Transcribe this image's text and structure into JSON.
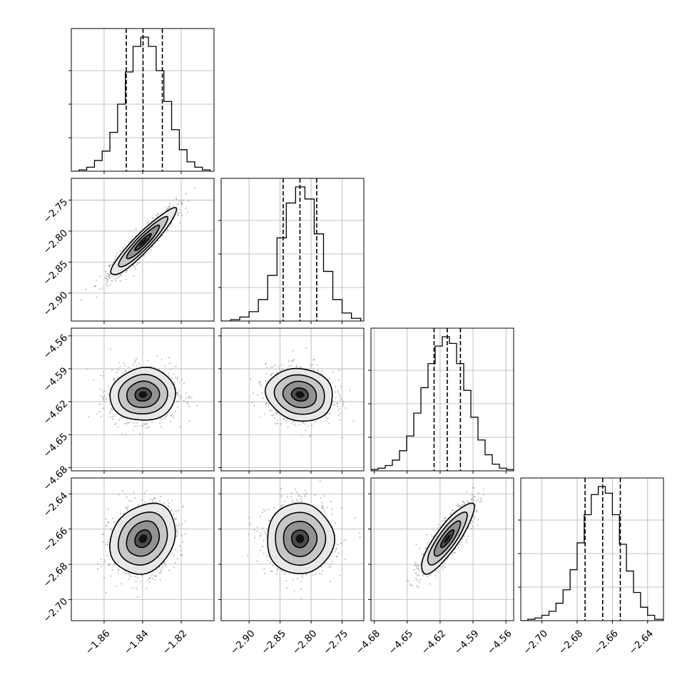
{
  "chart_data": {
    "type": "corner",
    "parameters": 4,
    "grid": true,
    "quantile_lines": "dashed",
    "colors": {
      "line": "#000000",
      "grid": "#b0b0b0",
      "scatter": "#8a8a8a",
      "background": "#ffffff"
    },
    "axes": [
      {
        "index": 0,
        "range": [
          -1.877,
          -1.803
        ],
        "ticks": [
          -1.86,
          -1.84,
          -1.82
        ],
        "tick_labels": [
          "−1.86",
          "−1.84",
          "−1.82"
        ]
      },
      {
        "index": 1,
        "range": [
          -2.945,
          -2.715
        ],
        "ticks": [
          -2.9,
          -2.85,
          -2.8,
          -2.75
        ],
        "tick_labels": [
          "−2.90",
          "−2.85",
          "−2.80",
          "−2.75"
        ]
      },
      {
        "index": 2,
        "range": [
          -4.683,
          -4.553
        ],
        "ticks": [
          -4.68,
          -4.65,
          -4.62,
          -4.59,
          -4.56
        ],
        "tick_labels": [
          "−4.68",
          "−4.65",
          "−4.62",
          "−4.59",
          "−4.56"
        ]
      },
      {
        "index": 3,
        "range": [
          -2.712,
          -2.631
        ],
        "ticks": [
          -2.7,
          -2.68,
          -2.66,
          -2.64
        ],
        "tick_labels": [
          "−2.70",
          "−2.68",
          "−2.66",
          "−2.64"
        ]
      }
    ],
    "marginals": [
      {
        "param": 0,
        "quantiles": [
          -1.8485,
          -1.8398,
          -1.8298
        ],
        "bins": [
          [
            -1.877,
            -1.873,
            0.0
          ],
          [
            -1.873,
            -1.869,
            0.01
          ],
          [
            -1.869,
            -1.865,
            0.03
          ],
          [
            -1.865,
            -1.861,
            0.08
          ],
          [
            -1.861,
            -1.857,
            0.15
          ],
          [
            -1.857,
            -1.853,
            0.29
          ],
          [
            -1.853,
            -1.849,
            0.5
          ],
          [
            -1.849,
            -1.845,
            0.74
          ],
          [
            -1.845,
            -1.841,
            0.93
          ],
          [
            -1.841,
            -1.837,
            1.0
          ],
          [
            -1.837,
            -1.833,
            0.93
          ],
          [
            -1.833,
            -1.829,
            0.75
          ],
          [
            -1.829,
            -1.825,
            0.52
          ],
          [
            -1.825,
            -1.821,
            0.31
          ],
          [
            -1.821,
            -1.817,
            0.16
          ],
          [
            -1.817,
            -1.813,
            0.07
          ],
          [
            -1.813,
            -1.809,
            0.03
          ],
          [
            -1.809,
            -1.805,
            0.01
          ]
        ]
      },
      {
        "param": 1,
        "quantiles": [
          -2.845,
          -2.818,
          -2.791
        ],
        "bins": [
          [
            -2.945,
            -2.93,
            0.0
          ],
          [
            -2.93,
            -2.915,
            0.01
          ],
          [
            -2.915,
            -2.9,
            0.03
          ],
          [
            -2.9,
            -2.885,
            0.07
          ],
          [
            -2.885,
            -2.87,
            0.16
          ],
          [
            -2.87,
            -2.855,
            0.34
          ],
          [
            -2.855,
            -2.84,
            0.62
          ],
          [
            -2.84,
            -2.825,
            0.88
          ],
          [
            -2.825,
            -2.81,
            1.0
          ],
          [
            -2.81,
            -2.795,
            0.91
          ],
          [
            -2.795,
            -2.78,
            0.65
          ],
          [
            -2.78,
            -2.765,
            0.37
          ],
          [
            -2.765,
            -2.75,
            0.16
          ],
          [
            -2.75,
            -2.735,
            0.06
          ],
          [
            -2.735,
            -2.72,
            0.02
          ]
        ]
      },
      {
        "param": 2,
        "quantiles": [
          -4.6255,
          -4.6135,
          -4.6015
        ],
        "bins": [
          [
            -4.683,
            -4.6765,
            0.01
          ],
          [
            -4.6765,
            -4.67,
            0.02
          ],
          [
            -4.67,
            -4.6635,
            0.04
          ],
          [
            -4.6635,
            -4.657,
            0.08
          ],
          [
            -4.657,
            -4.6505,
            0.15
          ],
          [
            -4.6505,
            -4.644,
            0.26
          ],
          [
            -4.644,
            -4.6375,
            0.43
          ],
          [
            -4.6375,
            -4.631,
            0.62
          ],
          [
            -4.631,
            -4.6245,
            0.8
          ],
          [
            -4.6245,
            -4.618,
            0.93
          ],
          [
            -4.618,
            -4.6115,
            1.0
          ],
          [
            -4.6115,
            -4.605,
            0.95
          ],
          [
            -4.605,
            -4.5985,
            0.8
          ],
          [
            -4.5985,
            -4.592,
            0.6
          ],
          [
            -4.592,
            -4.5855,
            0.4
          ],
          [
            -4.5855,
            -4.579,
            0.23
          ],
          [
            -4.579,
            -4.5725,
            0.12
          ],
          [
            -4.5725,
            -4.566,
            0.05
          ],
          [
            -4.566,
            -4.5595,
            0.02
          ],
          [
            -4.5595,
            -4.553,
            0.01
          ]
        ]
      },
      {
        "param": 3,
        "quantiles": [
          -2.6755,
          -2.6655,
          -2.6555
        ],
        "bins": [
          [
            -2.712,
            -2.708,
            0.0
          ],
          [
            -2.708,
            -2.704,
            0.01
          ],
          [
            -2.704,
            -2.7,
            0.02
          ],
          [
            -2.7,
            -2.696,
            0.04
          ],
          [
            -2.696,
            -2.692,
            0.07
          ],
          [
            -2.692,
            -2.688,
            0.13
          ],
          [
            -2.688,
            -2.684,
            0.23
          ],
          [
            -2.684,
            -2.68,
            0.38
          ],
          [
            -2.68,
            -2.676,
            0.58
          ],
          [
            -2.676,
            -2.672,
            0.79
          ],
          [
            -2.672,
            -2.668,
            0.94
          ],
          [
            -2.668,
            -2.664,
            1.0
          ],
          [
            -2.664,
            -2.66,
            0.95
          ],
          [
            -2.66,
            -2.656,
            0.79
          ],
          [
            -2.656,
            -2.652,
            0.57
          ],
          [
            -2.652,
            -2.648,
            0.37
          ],
          [
            -2.648,
            -2.644,
            0.21
          ],
          [
            -2.644,
            -2.64,
            0.1
          ],
          [
            -2.64,
            -2.636,
            0.04
          ],
          [
            -2.636,
            -2.631,
            0.01
          ]
        ]
      }
    ],
    "joints": [
      {
        "x": 0,
        "y": 1,
        "mean": [
          -1.8398,
          -2.818
        ],
        "sd": [
          0.0085,
          0.027
        ],
        "rho": 0.93
      },
      {
        "x": 0,
        "y": 2,
        "mean": [
          -1.8398,
          -4.6135
        ],
        "sd": [
          0.0085,
          0.012
        ],
        "rho": 0.05
      },
      {
        "x": 1,
        "y": 2,
        "mean": [
          -2.818,
          -4.6135
        ],
        "sd": [
          0.027,
          0.012
        ],
        "rho": -0.1
      },
      {
        "x": 0,
        "y": 3,
        "mean": [
          -1.8398,
          -2.6655
        ],
        "sd": [
          0.0085,
          0.01
        ],
        "rho": 0.2
      },
      {
        "x": 1,
        "y": 3,
        "mean": [
          -2.818,
          -2.6655
        ],
        "sd": [
          0.027,
          0.01
        ],
        "rho": 0.0
      },
      {
        "x": 2,
        "y": 3,
        "mean": [
          -4.6135,
          -2.6655
        ],
        "sd": [
          0.012,
          0.01
        ],
        "rho": 0.85
      }
    ],
    "contour_levels_sigma": [
      0.5,
      1.0,
      1.5,
      2.0
    ]
  }
}
